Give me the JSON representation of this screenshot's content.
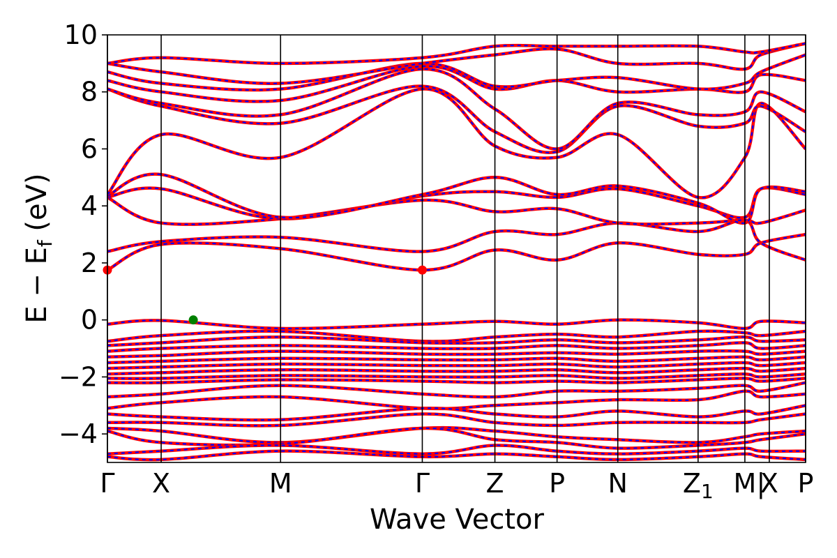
{
  "chart_data": {
    "type": "line",
    "title": "",
    "xlabel": "Wave Vector",
    "ylabel_main": "E − E",
    "ylabel_sub": "f",
    "ylabel_unit": " (eV)",
    "ylim": [
      -5,
      10
    ],
    "yticks": [
      -4,
      -2,
      0,
      2,
      4,
      6,
      8,
      10
    ],
    "ytick_labels": [
      "−4",
      "−2",
      "0",
      "2",
      "4",
      "6",
      "8",
      "10"
    ],
    "xlim": [
      0,
      1
    ],
    "kpath": [
      {
        "label": "Γ",
        "x": 0.0
      },
      {
        "label": "X",
        "x": 0.077
      },
      {
        "label": "M",
        "x": 0.248
      },
      {
        "label": "Γ",
        "x": 0.451
      },
      {
        "label": "Z",
        "x": 0.555
      },
      {
        "label": "P",
        "x": 0.644
      },
      {
        "label": "N",
        "x": 0.731
      },
      {
        "label": "Z1",
        "x": 0.846
      },
      {
        "label": "M",
        "x": 0.913
      },
      {
        "label": "|",
        "x": 0.936
      },
      {
        "label": "X",
        "x": 0.948
      },
      {
        "label": "P",
        "x": 1.0
      }
    ],
    "colors": {
      "band_solid": "#ff0000",
      "band_dash": "#0000ff",
      "cbm": "#ff0000",
      "vbm": "#008000"
    },
    "series": [
      {
        "role": "conduction",
        "x": [
          0,
          0.077,
          0.248,
          0.451,
          0.555,
          0.644,
          0.731,
          0.846,
          0.913,
          0.936,
          1.0
        ],
        "y": [
          1.75,
          2.65,
          2.5,
          1.75,
          2.45,
          2.1,
          2.7,
          2.3,
          2.3,
          2.7,
          3.0
        ]
      },
      {
        "role": "conduction",
        "x": [
          0,
          0.077,
          0.248,
          0.451,
          0.555,
          0.644,
          0.731,
          0.846,
          0.913,
          0.936,
          1.0
        ],
        "y": [
          2.4,
          2.75,
          2.9,
          2.4,
          3.1,
          3.0,
          3.4,
          3.1,
          3.5,
          2.7,
          2.1
        ]
      },
      {
        "role": "conduction",
        "x": [
          0,
          0.077,
          0.248,
          0.451,
          0.555,
          0.644,
          0.731,
          0.846,
          0.913,
          0.936,
          1.0
        ],
        "y": [
          4.3,
          3.4,
          3.55,
          4.2,
          3.8,
          3.9,
          3.4,
          3.4,
          3.5,
          3.4,
          3.85
        ]
      },
      {
        "role": "conduction",
        "x": [
          0,
          0.077,
          0.248,
          0.451,
          0.555,
          0.644,
          0.731,
          0.846,
          0.913,
          0.936,
          1.0
        ],
        "y": [
          4.3,
          4.6,
          3.55,
          4.35,
          4.5,
          4.3,
          4.6,
          4.0,
          3.6,
          4.6,
          4.4
        ]
      },
      {
        "role": "conduction",
        "x": [
          0,
          0.077,
          0.248,
          0.451,
          0.555,
          0.644,
          0.731,
          0.846,
          0.913,
          0.936,
          1.0
        ],
        "y": [
          4.35,
          5.1,
          3.6,
          4.4,
          5.0,
          4.4,
          4.7,
          4.1,
          3.4,
          4.6,
          4.5
        ]
      },
      {
        "role": "conduction",
        "x": [
          0,
          0.077,
          0.248,
          0.451,
          0.555,
          0.644,
          0.731,
          0.846,
          0.913,
          0.936,
          1.0
        ],
        "y": [
          4.4,
          6.5,
          5.7,
          8.1,
          6.1,
          5.7,
          6.5,
          4.3,
          5.7,
          7.6,
          6.0
        ]
      },
      {
        "role": "conduction",
        "x": [
          0,
          0.077,
          0.248,
          0.451,
          0.555,
          0.644,
          0.731,
          0.846,
          0.913,
          0.936,
          1.0
        ],
        "y": [
          8.1,
          7.5,
          6.9,
          8.2,
          6.6,
          5.9,
          7.5,
          6.8,
          6.9,
          7.5,
          6.6
        ]
      },
      {
        "role": "conduction",
        "x": [
          0,
          0.077,
          0.248,
          0.451,
          0.555,
          0.644,
          0.731,
          0.846,
          0.913,
          0.936,
          1.0
        ],
        "y": [
          8.1,
          7.6,
          7.2,
          8.8,
          7.4,
          6.0,
          7.6,
          7.2,
          7.3,
          8.0,
          7.3
        ]
      },
      {
        "role": "conduction",
        "x": [
          0,
          0.077,
          0.248,
          0.451,
          0.555,
          0.644,
          0.731,
          0.846,
          0.913,
          0.936,
          1.0
        ],
        "y": [
          8.4,
          8.0,
          7.7,
          8.9,
          8.1,
          8.4,
          8.0,
          8.1,
          8.0,
          8.6,
          8.4
        ]
      },
      {
        "role": "conduction",
        "x": [
          0,
          0.077,
          0.248,
          0.451,
          0.555,
          0.644,
          0.731,
          0.846,
          0.913,
          0.936,
          1.0
        ],
        "y": [
          8.7,
          8.3,
          8.1,
          9.0,
          8.2,
          8.4,
          8.5,
          8.1,
          8.3,
          8.7,
          9.3
        ]
      },
      {
        "role": "conduction",
        "x": [
          0,
          0.077,
          0.248,
          0.451,
          0.555,
          0.644,
          0.731,
          0.846,
          0.913,
          0.936,
          1.0
        ],
        "y": [
          9.0,
          8.7,
          8.3,
          9.0,
          9.3,
          9.5,
          9.0,
          9.0,
          8.8,
          9.3,
          9.7
        ]
      },
      {
        "role": "conduction",
        "x": [
          0,
          0.077,
          0.248,
          0.451,
          0.555,
          0.644,
          0.731,
          0.846,
          0.913,
          0.936,
          1.0
        ],
        "y": [
          9.0,
          9.2,
          9.0,
          9.2,
          9.6,
          9.6,
          9.6,
          9.6,
          9.4,
          9.4,
          9.7
        ]
      },
      {
        "role": "valence",
        "x": [
          0,
          0.077,
          0.248,
          0.451,
          0.555,
          0.644,
          0.731,
          0.846,
          0.913,
          0.936,
          1.0
        ],
        "y": [
          -0.15,
          -0.02,
          -0.3,
          -0.15,
          -0.05,
          -0.15,
          0.0,
          -0.1,
          -0.3,
          -0.05,
          -0.1
        ]
      },
      {
        "role": "valence",
        "x": [
          0,
          0.077,
          0.248,
          0.451,
          0.555,
          0.644,
          0.731,
          0.846,
          0.913,
          0.936,
          1.0
        ],
        "y": [
          -0.75,
          -0.55,
          -0.4,
          -0.75,
          -0.6,
          -0.5,
          -0.6,
          -0.4,
          -0.45,
          -0.55,
          -0.4
        ]
      },
      {
        "role": "valence",
        "x": [
          0,
          0.077,
          0.248,
          0.451,
          0.555,
          0.644,
          0.731,
          0.846,
          0.913,
          0.936,
          1.0
        ],
        "y": [
          -0.9,
          -0.8,
          -0.6,
          -0.8,
          -0.8,
          -0.7,
          -0.8,
          -0.7,
          -0.6,
          -0.75,
          -0.7
        ]
      },
      {
        "role": "valence",
        "x": [
          0,
          0.077,
          0.248,
          0.451,
          0.555,
          0.644,
          0.731,
          0.846,
          0.913,
          0.936,
          1.0
        ],
        "y": [
          -1.1,
          -1.0,
          -0.9,
          -1.0,
          -1.0,
          -0.9,
          -1.0,
          -0.9,
          -0.8,
          -1.0,
          -0.9
        ]
      },
      {
        "role": "valence",
        "x": [
          0,
          0.077,
          0.248,
          0.451,
          0.555,
          0.644,
          0.731,
          0.846,
          0.913,
          0.936,
          1.0
        ],
        "y": [
          -1.3,
          -1.25,
          -1.1,
          -1.2,
          -1.2,
          -1.15,
          -1.2,
          -1.1,
          -1.1,
          -1.2,
          -1.1
        ]
      },
      {
        "role": "valence",
        "x": [
          0,
          0.077,
          0.248,
          0.451,
          0.555,
          0.644,
          0.731,
          0.846,
          0.913,
          0.936,
          1.0
        ],
        "y": [
          -1.5,
          -1.45,
          -1.35,
          -1.4,
          -1.4,
          -1.35,
          -1.45,
          -1.35,
          -1.3,
          -1.4,
          -1.3
        ]
      },
      {
        "role": "valence",
        "x": [
          0,
          0.077,
          0.248,
          0.451,
          0.555,
          0.644,
          0.731,
          0.846,
          0.913,
          0.936,
          1.0
        ],
        "y": [
          -1.7,
          -1.65,
          -1.55,
          -1.6,
          -1.6,
          -1.55,
          -1.65,
          -1.55,
          -1.5,
          -1.6,
          -1.5
        ]
      },
      {
        "role": "valence",
        "x": [
          0,
          0.077,
          0.248,
          0.451,
          0.555,
          0.644,
          0.731,
          0.846,
          0.913,
          0.936,
          1.0
        ],
        "y": [
          -1.9,
          -1.85,
          -1.75,
          -1.8,
          -1.8,
          -1.75,
          -1.85,
          -1.75,
          -1.7,
          -1.8,
          -1.7
        ]
      },
      {
        "role": "valence",
        "x": [
          0,
          0.077,
          0.248,
          0.451,
          0.555,
          0.644,
          0.731,
          0.846,
          0.913,
          0.936,
          1.0
        ],
        "y": [
          -2.05,
          -2.05,
          -1.95,
          -2.0,
          -2.0,
          -1.95,
          -2.05,
          -1.95,
          -1.9,
          -2.0,
          -1.9
        ]
      },
      {
        "role": "valence",
        "x": [
          0,
          0.077,
          0.248,
          0.451,
          0.555,
          0.644,
          0.731,
          0.846,
          0.913,
          0.936,
          1.0
        ],
        "y": [
          -2.2,
          -2.2,
          -2.1,
          -2.15,
          -2.2,
          -2.15,
          -2.2,
          -2.1,
          -2.05,
          -2.15,
          -2.05
        ]
      },
      {
        "role": "valence",
        "x": [
          0,
          0.077,
          0.248,
          0.451,
          0.555,
          0.644,
          0.731,
          0.846,
          0.913,
          0.936,
          1.0
        ],
        "y": [
          -2.7,
          -2.6,
          -2.3,
          -2.6,
          -2.7,
          -2.5,
          -2.5,
          -2.4,
          -2.3,
          -2.5,
          -2.2
        ]
      },
      {
        "role": "valence",
        "x": [
          0,
          0.077,
          0.248,
          0.451,
          0.555,
          0.644,
          0.731,
          0.846,
          0.913,
          0.936,
          1.0
        ],
        "y": [
          -3.1,
          -2.9,
          -2.7,
          -3.1,
          -3.0,
          -2.9,
          -2.8,
          -2.8,
          -2.5,
          -2.7,
          -2.6
        ]
      },
      {
        "role": "valence",
        "x": [
          0,
          0.077,
          0.248,
          0.451,
          0.555,
          0.644,
          0.731,
          0.846,
          0.913,
          0.936,
          1.0
        ],
        "y": [
          -3.3,
          -3.4,
          -3.5,
          -3.1,
          -3.3,
          -3.4,
          -3.2,
          -3.4,
          -3.2,
          -3.3,
          -3.0
        ]
      },
      {
        "role": "valence",
        "x": [
          0,
          0.077,
          0.248,
          0.451,
          0.555,
          0.644,
          0.731,
          0.846,
          0.913,
          0.936,
          1.0
        ],
        "y": [
          -3.6,
          -3.6,
          -3.7,
          -3.3,
          -3.6,
          -3.7,
          -3.6,
          -3.6,
          -3.6,
          -3.5,
          -3.3
        ]
      },
      {
        "role": "valence",
        "x": [
          0,
          0.077,
          0.248,
          0.451,
          0.555,
          0.644,
          0.731,
          0.846,
          0.913,
          0.936,
          1.0
        ],
        "y": [
          -3.8,
          -3.9,
          -4.3,
          -3.8,
          -3.9,
          -4.1,
          -4.2,
          -4.3,
          -4.1,
          -4.0,
          -3.9
        ]
      },
      {
        "role": "valence",
        "x": [
          0,
          0.077,
          0.248,
          0.451,
          0.555,
          0.644,
          0.731,
          0.846,
          0.913,
          0.936,
          1.0
        ],
        "y": [
          -3.9,
          -4.3,
          -4.35,
          -3.8,
          -4.2,
          -4.3,
          -4.5,
          -4.4,
          -4.3,
          -4.2,
          -4.0
        ]
      },
      {
        "role": "valence",
        "x": [
          0,
          0.077,
          0.248,
          0.451,
          0.555,
          0.644,
          0.731,
          0.846,
          0.913,
          0.936,
          1.0
        ],
        "y": [
          -4.7,
          -4.6,
          -4.4,
          -4.7,
          -4.4,
          -4.6,
          -4.7,
          -4.6,
          -4.5,
          -4.6,
          -4.6
        ]
      },
      {
        "role": "valence",
        "x": [
          0,
          0.077,
          0.248,
          0.451,
          0.555,
          0.644,
          0.731,
          0.846,
          0.913,
          0.936,
          1.0
        ],
        "y": [
          -4.8,
          -4.9,
          -4.6,
          -4.8,
          -4.7,
          -4.8,
          -4.9,
          -4.8,
          -4.7,
          -4.8,
          -4.9
        ]
      }
    ],
    "markers": [
      {
        "role": "cbm",
        "x": 0.0,
        "y": 1.75
      },
      {
        "role": "cbm",
        "x": 0.451,
        "y": 1.75
      },
      {
        "role": "vbm",
        "x": 0.123,
        "y": 0.0
      }
    ]
  }
}
